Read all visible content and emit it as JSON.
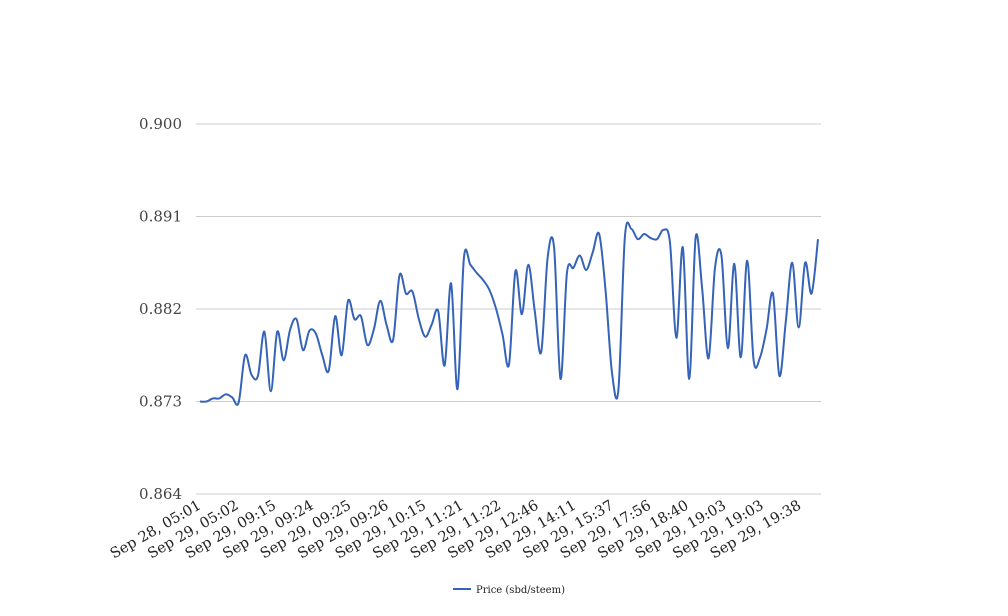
{
  "chart_data": {
    "type": "line",
    "title": "",
    "xlabel": "",
    "ylabel": "",
    "ylim": [
      0.864,
      0.9
    ],
    "yticks": [
      "0.864",
      "0.873",
      "0.882",
      "0.891",
      "0.900"
    ],
    "grid": true,
    "legend_position": "bottom-center",
    "color": "#3463b8",
    "x_tick_labels": [
      "Sep 28, 05:01",
      "Sep 29, 05:02",
      "Sep 29, 09:15",
      "Sep 29, 09:24",
      "Sep 29, 09:25",
      "Sep 29, 09:26",
      "Sep 29, 10:15",
      "Sep 29, 11:21",
      "Sep 29, 11:22",
      "Sep 29, 12:46",
      "Sep 29, 14:11",
      "Sep 29, 15:37",
      "Sep 29, 17:56",
      "Sep 29, 18:40",
      "Sep 29, 19:03",
      "Sep 29, 19:03",
      "Sep 29, 19:38"
    ],
    "series": [
      {
        "name": "Price (sbd/steem)",
        "values": [
          0.873,
          0.873,
          0.8733,
          0.8733,
          0.8737,
          0.8734,
          0.8729,
          0.8775,
          0.8756,
          0.8755,
          0.8798,
          0.874,
          0.8798,
          0.877,
          0.88,
          0.881,
          0.878,
          0.8799,
          0.8796,
          0.8775,
          0.876,
          0.8813,
          0.8775,
          0.8828,
          0.881,
          0.8813,
          0.8785,
          0.88,
          0.8828,
          0.8804,
          0.879,
          0.8853,
          0.8835,
          0.8837,
          0.881,
          0.8793,
          0.8805,
          0.8818,
          0.8765,
          0.8845,
          0.8742,
          0.887,
          0.8863,
          0.8855,
          0.8848,
          0.8838,
          0.882,
          0.8795,
          0.8766,
          0.8857,
          0.8815,
          0.8863,
          0.8818,
          0.8778,
          0.887,
          0.888,
          0.8752,
          0.8855,
          0.886,
          0.8872,
          0.8858,
          0.8875,
          0.8893,
          0.8838,
          0.8758,
          0.8742,
          0.889,
          0.8898,
          0.8888,
          0.8893,
          0.8889,
          0.8888,
          0.8897,
          0.8885,
          0.8792,
          0.888,
          0.8752,
          0.889,
          0.884,
          0.8772,
          0.886,
          0.8872,
          0.8782,
          0.8864,
          0.8773,
          0.8867,
          0.877,
          0.8773,
          0.88,
          0.8835,
          0.8755,
          0.8808,
          0.8865,
          0.8802,
          0.8865,
          0.8835,
          0.8888
        ]
      }
    ]
  }
}
